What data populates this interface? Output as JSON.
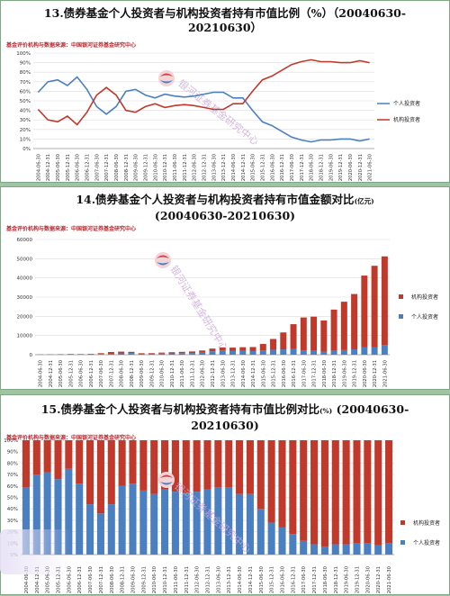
{
  "chart_data": [
    {
      "type": "line",
      "title": "13.债券基金个人投资者与机构投资者持有市值比例（%）（20040630-20210630）",
      "title_line1": "13.债券基金个人投资者与机构投资者持有市值比例（%）（20040630-",
      "title_line2": "20210630）",
      "source": "基金评价机构与数据来源：中国银河证券基金研究中心",
      "yticks": [
        "100%",
        "90%",
        "80%",
        "70%",
        "60%",
        "50%",
        "40%",
        "30%",
        "20%",
        "10%",
        "0%"
      ],
      "ylim": [
        0,
        100
      ],
      "x": [
        "2004-06-30",
        "2004-12-31",
        "2005-06-30",
        "2005-12-31",
        "2006-06-30",
        "2006-12-31",
        "2007-06-30",
        "2007-12-31",
        "2008-06-30",
        "2008-12-31",
        "2009-06-30",
        "2009-12-31",
        "2010-06-30",
        "2010-12-31",
        "2011-06-30",
        "2011-12-31",
        "2012-06-30",
        "2012-12-31",
        "2013-06-30",
        "2013-12-31",
        "2014-06-30",
        "2014-12-31",
        "2015-06-30",
        "2015-12-31",
        "2016-06-30",
        "2016-12-31",
        "2017-06-30",
        "2017-12-31",
        "2018-06-30",
        "2018-12-31",
        "2019-06-30",
        "2019-12-31",
        "2020-06-30",
        "2020-12-31",
        "2021-06-30"
      ],
      "series": [
        {
          "name": "个人投资者",
          "color": "#4a7fc1",
          "values": [
            59,
            70,
            72,
            66,
            75,
            62,
            44,
            36,
            44,
            60,
            62,
            56,
            53,
            57,
            55,
            54,
            55,
            57,
            59,
            59,
            53,
            53,
            40,
            28,
            24,
            18,
            12,
            9,
            7,
            9,
            9,
            10,
            10,
            8,
            10
          ]
        },
        {
          "name": "机构投资者",
          "color": "#c0392b",
          "values": [
            41,
            30,
            28,
            34,
            25,
            38,
            56,
            64,
            56,
            40,
            38,
            44,
            47,
            43,
            45,
            46,
            45,
            43,
            41,
            41,
            47,
            47,
            60,
            72,
            76,
            82,
            88,
            91,
            93,
            91,
            91,
            90,
            90,
            92,
            90
          ]
        }
      ]
    },
    {
      "type": "bar",
      "stacked": true,
      "title": "14.债券基金个人投资者与机构投资者持有市值金额对比（亿元）（20040630-20210630）",
      "title_line1": "14.债券基金个人投资者与机构投资者持有市值金额对比",
      "unit": "(亿元)",
      "title_line2": "(20040630-20210630)",
      "source": "基金评价机构与数据来源：中国银河证券基金研究中心",
      "yticks": [
        "60000",
        "50000",
        "40000",
        "30000",
        "20000",
        "10000",
        "0"
      ],
      "ylim": [
        0,
        60000
      ],
      "x": [
        "2004-06-30",
        "2004-12-31",
        "2005-06-30",
        "2005-12-31",
        "2006-06-30",
        "2006-12-31",
        "2007-06-30",
        "2007-12-31",
        "2008-06-30",
        "2008-12-31",
        "2009-06-30",
        "2009-12-31",
        "2010-06-30",
        "2010-12-31",
        "2011-06-30",
        "2011-12-31",
        "2012-06-30",
        "2012-12-31",
        "2013-06-30",
        "2013-12-31",
        "2014-06-30",
        "2014-12-31",
        "2015-06-30",
        "2015-12-31",
        "2016-06-30",
        "2016-12-31",
        "2017-06-30",
        "2017-12-31",
        "2018-06-30",
        "2018-12-31",
        "2019-06-30",
        "2019-12-31",
        "2020-06-30",
        "2020-12-31",
        "2021-06-30"
      ],
      "series": [
        {
          "name": "个人投资者",
          "color": "#4a7fc1",
          "values": [
            100,
            150,
            200,
            250,
            250,
            300,
            350,
            500,
            700,
            900,
            500,
            450,
            600,
            700,
            800,
            900,
            1200,
            1800,
            2200,
            2100,
            2000,
            1900,
            2300,
            2600,
            2800,
            2900,
            2200,
            2000,
            1600,
            2000,
            2400,
            2800,
            3800,
            4000,
            5000
          ]
        },
        {
          "name": "机构投资者",
          "color": "#c0392b",
          "values": [
            70,
            70,
            80,
            130,
            80,
            180,
            450,
            900,
            900,
            600,
            300,
            350,
            500,
            600,
            700,
            800,
            1000,
            1400,
            1600,
            1600,
            1900,
            2100,
            3300,
            5600,
            8800,
            13000,
            17200,
            17800,
            16200,
            21500,
            25200,
            28800,
            37400,
            42300,
            46200
          ]
        }
      ]
    },
    {
      "type": "bar",
      "stacked": true,
      "title": "15.债券基金个人投资者与机构投资者持有市值比例对比（%）（20040630-20210630）",
      "title_line1": "15.债券基金个人投资者与机构投资者持有市值比例对比",
      "unit": "(%)",
      "title_line1b": "(20040630-",
      "title_line2": "20210630)",
      "source": "基金评价机构与数据来源：中国银河证券基金研究中心",
      "yticks": [
        "100%",
        "90%",
        "80%",
        "70%",
        "60%",
        "50%",
        "40%",
        "30%",
        "20%",
        "10%",
        "0%"
      ],
      "ylim": [
        0,
        100
      ],
      "x": [
        "2004-06-30",
        "2004-12-31",
        "2005-06-30",
        "2005-12-31",
        "2006-06-30",
        "2006-12-31",
        "2007-06-30",
        "2007-12-31",
        "2008-06-30",
        "2008-12-31",
        "2009-06-30",
        "2009-12-31",
        "2010-06-30",
        "2010-12-31",
        "2011-06-30",
        "2011-12-31",
        "2012-06-30",
        "2012-12-31",
        "2013-06-30",
        "2013-12-31",
        "2014-06-30",
        "2014-12-31",
        "2015-06-30",
        "2015-12-31",
        "2016-06-30",
        "2016-12-31",
        "2017-06-30",
        "2017-12-31",
        "2018-06-30",
        "2018-12-31",
        "2019-06-30",
        "2019-12-31",
        "2020-06-30",
        "2020-12-31",
        "2021-06-30"
      ],
      "series": [
        {
          "name": "个人投资者",
          "color": "#4a7fc1",
          "values": [
            59,
            70,
            72,
            66,
            75,
            62,
            44,
            36,
            44,
            60,
            62,
            56,
            53,
            57,
            55,
            54,
            55,
            57,
            59,
            59,
            53,
            53,
            40,
            28,
            24,
            18,
            12,
            9,
            7,
            9,
            9,
            10,
            10,
            8,
            10
          ]
        },
        {
          "name": "机构投资者",
          "color": "#c0392b",
          "values": [
            41,
            30,
            28,
            34,
            25,
            38,
            56,
            64,
            56,
            40,
            38,
            44,
            47,
            43,
            45,
            46,
            45,
            43,
            41,
            41,
            47,
            47,
            60,
            72,
            76,
            82,
            88,
            91,
            93,
            91,
            91,
            90,
            90,
            92,
            90
          ]
        }
      ]
    }
  ],
  "watermark": "银河证券基金研究中心"
}
